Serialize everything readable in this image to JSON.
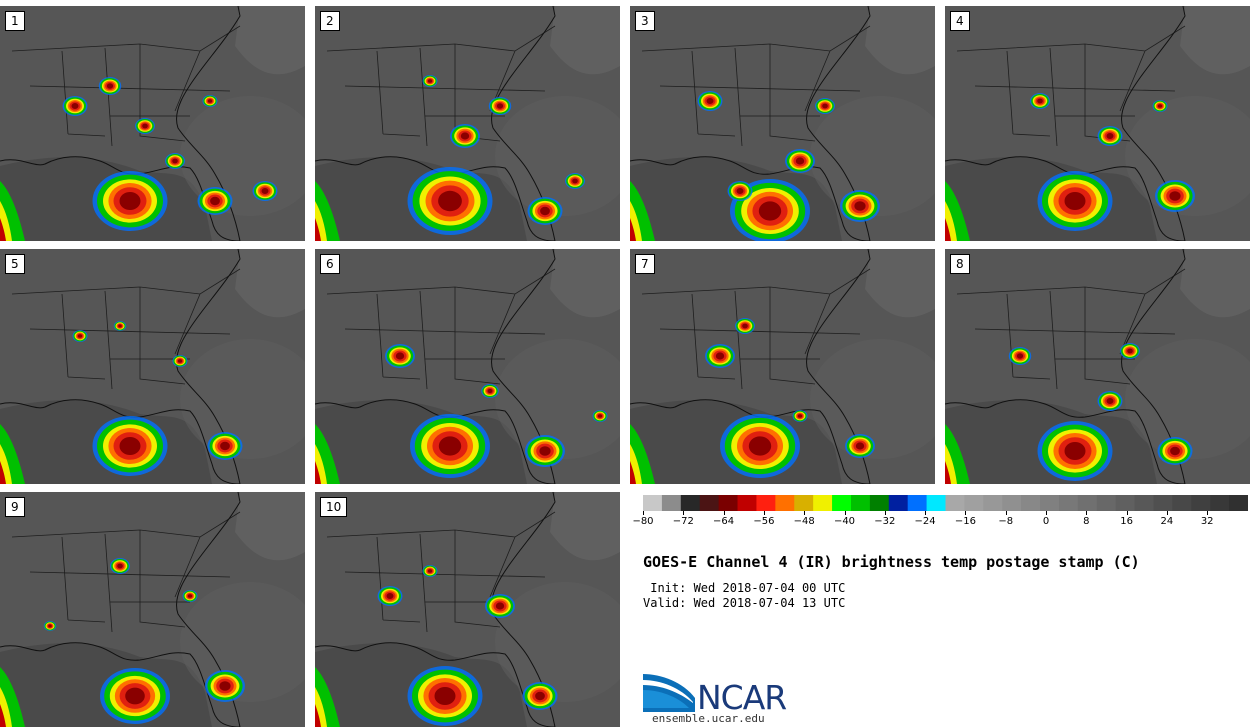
{
  "panels": [
    {
      "label": "1"
    },
    {
      "label": "2"
    },
    {
      "label": "3"
    },
    {
      "label": "4"
    },
    {
      "label": "5"
    },
    {
      "label": "6"
    },
    {
      "label": "7"
    },
    {
      "label": "8"
    },
    {
      "label": "9"
    },
    {
      "label": "10"
    }
  ],
  "colorbar": {
    "colors": [
      "#c8c8c8",
      "#8c8c8c",
      "#282828",
      "#4b1414",
      "#7a0000",
      "#c00000",
      "#ff2010",
      "#ff7000",
      "#d8b000",
      "#f0f000",
      "#00ff00",
      "#00c000",
      "#008000",
      "#0020a0",
      "#0070ff",
      "#00e8ff",
      "#a8a8a8",
      "#a0a0a0",
      "#989898",
      "#909090",
      "#888888",
      "#808080",
      "#787878",
      "#707070",
      "#686868",
      "#606060",
      "#585858",
      "#505050",
      "#484848",
      "#404040",
      "#383838",
      "#303030"
    ],
    "ticks": [
      "−80",
      "−72",
      "−64",
      "−56",
      "−48",
      "−40",
      "−32",
      "−24",
      "−16",
      "−8",
      "0",
      "8",
      "16",
      "24",
      "32"
    ]
  },
  "title": "GOES-E Channel 4 (IR) brightness temp postage stamp (C)",
  "init_line": " Init: Wed 2018-07-04 00 UTC",
  "valid_line": "Valid: Wed 2018-07-04 13 UTC",
  "logo": {
    "name": "NCAR",
    "url": "ensemble.ucar.edu"
  }
}
